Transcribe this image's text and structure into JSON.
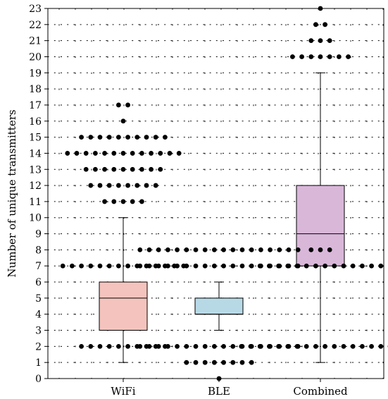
{
  "chart_data": {
    "type": "box",
    "title": "",
    "xlabel": "",
    "ylabel": "Number of unique transmitters",
    "ylim": [
      0,
      23
    ],
    "yticks": [
      0,
      1,
      2,
      3,
      4,
      5,
      6,
      7,
      8,
      9,
      10,
      11,
      12,
      13,
      14,
      15,
      16,
      17,
      18,
      19,
      20,
      21,
      22,
      23
    ],
    "grid": true,
    "legend": "none",
    "categories": [
      "WiFi",
      "BLE",
      "Combined"
    ],
    "boxes": [
      {
        "category": "WiFi",
        "q1": 3,
        "median": 5,
        "q3": 6,
        "whisker_low": 1,
        "whisker_high": 10,
        "color": "#f4c3bd"
      },
      {
        "category": "BLE",
        "q1": 4,
        "median": 4,
        "q3": 5,
        "whisker_low": 3,
        "whisker_high": 6,
        "color": "#b7d9e6"
      },
      {
        "category": "Combined",
        "q1": 7,
        "median": 9,
        "q3": 12,
        "whisker_low": 1,
        "whisker_high": 19,
        "color": "#d9b7d9"
      }
    ],
    "swarm_points": [
      {
        "y": 0,
        "counts": [
          0,
          1,
          0
        ]
      },
      {
        "y": 1,
        "counts": [
          0,
          8,
          0
        ]
      },
      {
        "y": 2,
        "counts": [
          10,
          18,
          18
        ]
      },
      {
        "y": 7,
        "counts": [
          14,
          18,
          14
        ]
      },
      {
        "y": 8,
        "counts": [
          0,
          18,
          3
        ]
      },
      {
        "y": 11,
        "counts": [
          5,
          0,
          0
        ]
      },
      {
        "y": 12,
        "counts": [
          8,
          0,
          0
        ]
      },
      {
        "y": 13,
        "counts": [
          9,
          0,
          0
        ]
      },
      {
        "y": 14,
        "counts": [
          13,
          0,
          0
        ]
      },
      {
        "y": 15,
        "counts": [
          10,
          0,
          0
        ]
      },
      {
        "y": 16,
        "counts": [
          1,
          0,
          0
        ]
      },
      {
        "y": 17,
        "counts": [
          2,
          0,
          0
        ]
      },
      {
        "y": 20,
        "counts": [
          0,
          0,
          7
        ]
      },
      {
        "y": 21,
        "counts": [
          0,
          0,
          3
        ]
      },
      {
        "y": 22,
        "counts": [
          0,
          0,
          2
        ]
      },
      {
        "y": 23,
        "counts": [
          0,
          0,
          1
        ]
      }
    ]
  }
}
